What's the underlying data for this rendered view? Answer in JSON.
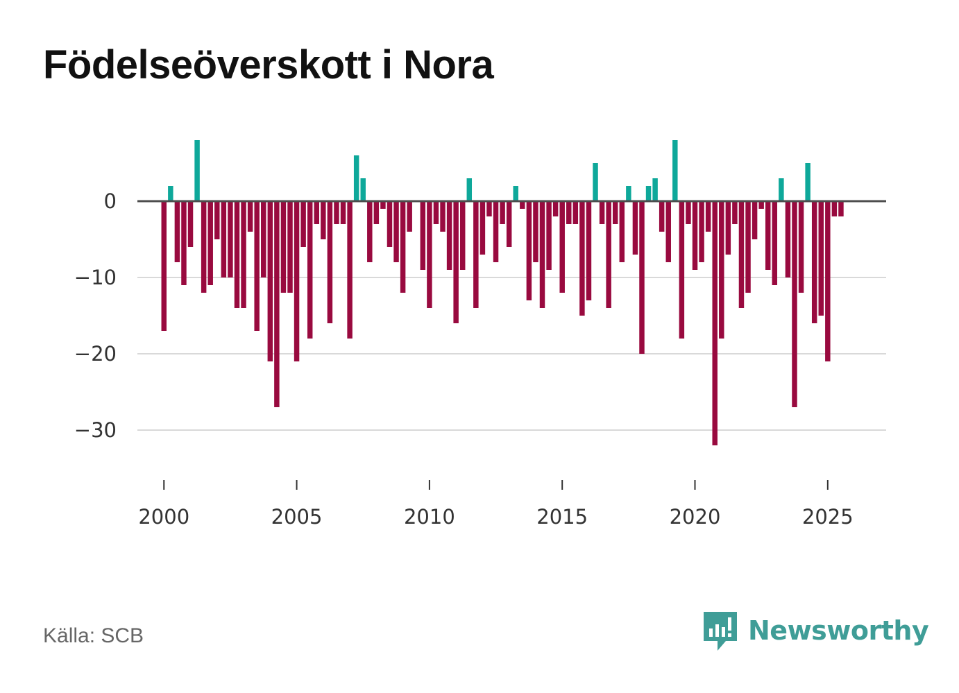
{
  "title": "Födelseöverskott i Nora",
  "source": "Källa: SCB",
  "brand": {
    "name": "Newsworthy",
    "icon": "newsworthy-logo-icon"
  },
  "colors": {
    "positive": "#0ea89a",
    "negative": "#990a3f",
    "zero_line": "#4d4d4d",
    "gridline": "#d9d9d9",
    "brand": "#3f9d97"
  },
  "chart_data": {
    "type": "bar",
    "title": "Födelseöverskott i Nora",
    "xlabel": "",
    "ylabel": "",
    "ylim": [
      -35,
      9
    ],
    "yticks": [
      0,
      -10,
      -20,
      -30
    ],
    "ytick_labels": [
      "0",
      "−10",
      "−20",
      "−30"
    ],
    "xticks": [
      2000,
      2005,
      2010,
      2015,
      2020,
      2025
    ],
    "xtick_labels": [
      "2000",
      "2005",
      "2010",
      "2015",
      "2020",
      "2025"
    ],
    "xlim": [
      1999.0,
      2027.2
    ],
    "grid": true,
    "frequency": "quarterly",
    "start": 2000.0,
    "step": 0.25,
    "values": [
      -17,
      2,
      -8,
      -11,
      -6,
      8,
      -12,
      -11,
      -5,
      -10,
      -10,
      -14,
      -14,
      -4,
      -17,
      -10,
      -21,
      -27,
      -12,
      -12,
      -21,
      -6,
      -18,
      -3,
      -5,
      -16,
      -3,
      -3,
      -18,
      6,
      3,
      -8,
      -3,
      -1,
      -6,
      -8,
      -12,
      -4,
      0,
      -9,
      -14,
      -3,
      -4,
      -9,
      -16,
      -9,
      3,
      -14,
      -7,
      -2,
      -8,
      -3,
      -6,
      2,
      -1,
      -13,
      -8,
      -14,
      -9,
      -2,
      -12,
      -3,
      -3,
      -15,
      -13,
      5,
      -3,
      -14,
      -3,
      -8,
      2,
      -7,
      -20,
      2,
      3,
      -4,
      -8,
      8,
      -18,
      -3,
      -9,
      -8,
      -4,
      -32,
      -18,
      -7,
      -3,
      -14,
      -12,
      -5,
      -1,
      -9,
      -11,
      3,
      -10,
      -27,
      -12,
      5,
      -16,
      -15,
      -21,
      -2,
      -2
    ]
  }
}
